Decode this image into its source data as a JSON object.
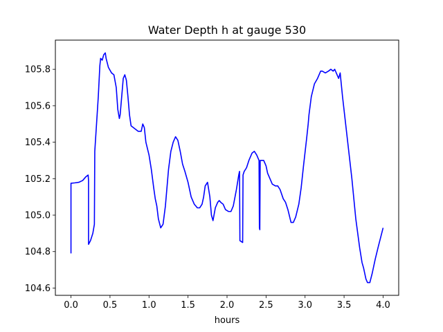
{
  "chart_data": {
    "type": "line",
    "title": "Water Depth h at gauge 530",
    "xlabel": "hours",
    "ylabel": "",
    "xlim": [
      -0.2,
      4.2
    ],
    "ylim": [
      104.56,
      105.96
    ],
    "xticks": [
      0.0,
      0.5,
      1.0,
      1.5,
      2.0,
      2.5,
      3.0,
      3.5,
      4.0
    ],
    "xtick_labels": [
      "0.0",
      "0.5",
      "1.0",
      "1.5",
      "2.0",
      "2.5",
      "3.0",
      "3.5",
      "4.0"
    ],
    "yticks": [
      104.6,
      104.8,
      105.0,
      105.2,
      105.4,
      105.6,
      105.8
    ],
    "ytick_labels": [
      "104.6",
      "104.8",
      "105.0",
      "105.2",
      "105.4",
      "105.6",
      "105.8"
    ],
    "grid": false,
    "series": [
      {
        "name": "h",
        "color": "#0000ff",
        "x": [
          0.0,
          0.0,
          0.05,
          0.1,
          0.15,
          0.19,
          0.22,
          0.225,
          0.225,
          0.25,
          0.28,
          0.3,
          0.305,
          0.32,
          0.35,
          0.37,
          0.38,
          0.4,
          0.42,
          0.44,
          0.45,
          0.48,
          0.52,
          0.55,
          0.58,
          0.6,
          0.62,
          0.63,
          0.65,
          0.67,
          0.69,
          0.71,
          0.73,
          0.75,
          0.77,
          0.8,
          0.83,
          0.86,
          0.9,
          0.92,
          0.94,
          0.96,
          1.0,
          1.03,
          1.06,
          1.08,
          1.1,
          1.12,
          1.15,
          1.18,
          1.21,
          1.25,
          1.28,
          1.31,
          1.34,
          1.37,
          1.4,
          1.43,
          1.46,
          1.5,
          1.54,
          1.58,
          1.62,
          1.65,
          1.68,
          1.7,
          1.72,
          1.75,
          1.78,
          1.8,
          1.82,
          1.85,
          1.88,
          1.9,
          1.92,
          1.95,
          1.98,
          2.02,
          2.05,
          2.08,
          2.12,
          2.15,
          2.16,
          2.165,
          2.2,
          2.205,
          2.22,
          2.25,
          2.28,
          2.32,
          2.35,
          2.38,
          2.4,
          2.41,
          2.415,
          2.42,
          2.425,
          2.43,
          2.45,
          2.47,
          2.5,
          2.52,
          2.55,
          2.58,
          2.62,
          2.65,
          2.68,
          2.72,
          2.75,
          2.78,
          2.82,
          2.85,
          2.88,
          2.92,
          2.95,
          2.98,
          3.02,
          3.04,
          3.05,
          3.08,
          3.12,
          3.16,
          3.2,
          3.22,
          3.26,
          3.3,
          3.33,
          3.36,
          3.38,
          3.4,
          3.43,
          3.45,
          3.48,
          3.52,
          3.56,
          3.6,
          3.65,
          3.7,
          3.73,
          3.75,
          3.78,
          3.8,
          3.83,
          3.86,
          3.9,
          3.94,
          3.97,
          4.0
        ],
        "y": [
          104.79,
          105.175,
          105.177,
          105.18,
          105.19,
          105.21,
          105.22,
          105.19,
          104.84,
          104.86,
          104.9,
          104.95,
          105.35,
          105.45,
          105.65,
          105.82,
          105.86,
          105.85,
          105.88,
          105.89,
          105.86,
          105.81,
          105.78,
          105.77,
          105.7,
          105.58,
          105.53,
          105.55,
          105.65,
          105.75,
          105.77,
          105.74,
          105.65,
          105.55,
          105.49,
          105.48,
          105.47,
          105.46,
          105.46,
          105.5,
          105.48,
          105.4,
          105.33,
          105.25,
          105.15,
          105.09,
          105.05,
          104.98,
          104.93,
          104.95,
          105.05,
          105.25,
          105.35,
          105.4,
          105.43,
          105.41,
          105.35,
          105.28,
          105.24,
          105.18,
          105.1,
          105.06,
          105.04,
          105.04,
          105.06,
          105.1,
          105.16,
          105.18,
          105.1,
          105.0,
          104.97,
          105.04,
          105.07,
          105.08,
          105.07,
          105.06,
          105.03,
          105.02,
          105.02,
          105.05,
          105.14,
          105.22,
          105.24,
          104.86,
          104.85,
          105.22,
          105.24,
          105.26,
          105.3,
          105.34,
          105.35,
          105.33,
          105.31,
          105.3,
          104.93,
          104.92,
          105.3,
          105.3,
          105.3,
          105.3,
          105.27,
          105.23,
          105.2,
          105.17,
          105.16,
          105.16,
          105.14,
          105.09,
          105.07,
          105.03,
          104.96,
          104.96,
          104.99,
          105.06,
          105.15,
          105.27,
          105.42,
          105.5,
          105.55,
          105.65,
          105.72,
          105.75,
          105.79,
          105.79,
          105.78,
          105.79,
          105.8,
          105.79,
          105.8,
          105.78,
          105.75,
          105.78,
          105.65,
          105.5,
          105.35,
          105.2,
          104.98,
          104.82,
          104.74,
          104.71,
          104.65,
          104.63,
          104.63,
          104.68,
          104.76,
          104.83,
          104.88,
          104.93
        ]
      }
    ]
  }
}
